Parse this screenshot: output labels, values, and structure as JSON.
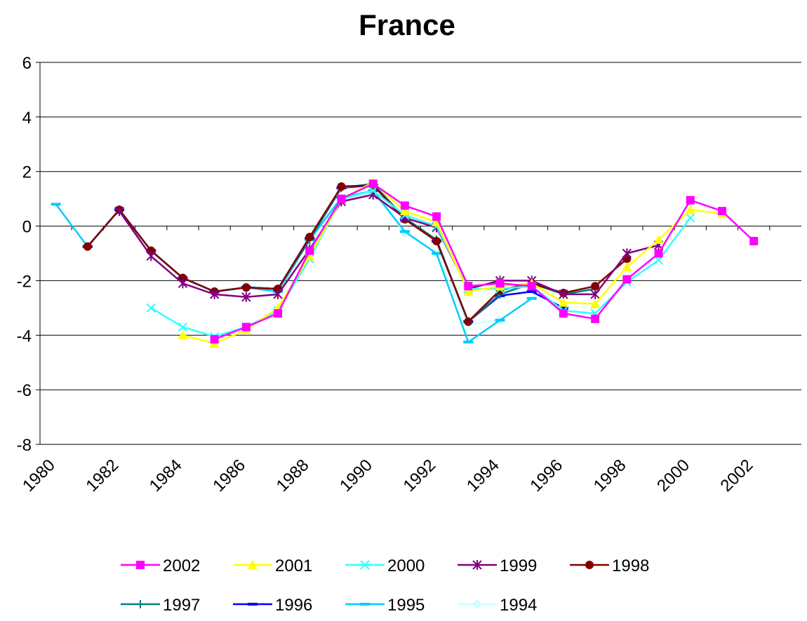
{
  "chart_data": {
    "type": "line",
    "title": "France",
    "categories": [
      "1980",
      null,
      "1982",
      null,
      "1984",
      null,
      "1986",
      null,
      "1988",
      null,
      "1990",
      null,
      "1992",
      null,
      "1994",
      null,
      "1996",
      null,
      "1998",
      null,
      "2000",
      null,
      "2002",
      null
    ],
    "ylim": [
      -8,
      6
    ],
    "yticks": [
      -8,
      -6,
      -4,
      -2,
      0,
      2,
      4,
      6
    ],
    "grid": true,
    "series": [
      {
        "name": "2002",
        "color": "#ff00ff",
        "marker": "square",
        "values": [
          null,
          null,
          null,
          null,
          null,
          -4.15,
          -3.7,
          -3.2,
          -0.9,
          1.0,
          1.55,
          0.75,
          0.35,
          -2.2,
          -2.1,
          -2.2,
          -3.2,
          -3.4,
          -1.95,
          -1.0,
          0.95,
          0.55,
          -0.55,
          null
        ]
      },
      {
        "name": "2001",
        "color": "#ffff00",
        "marker": "triangle",
        "values": [
          null,
          null,
          null,
          null,
          -4.0,
          -4.3,
          -3.8,
          -3.0,
          -1.1,
          1.0,
          1.6,
          0.55,
          0.15,
          -2.4,
          -2.2,
          -2.1,
          -2.8,
          -2.85,
          -1.5,
          -0.5,
          0.6,
          0.45,
          null,
          null
        ]
      },
      {
        "name": "2000",
        "color": "#33ffff",
        "marker": "x",
        "values": [
          null,
          null,
          null,
          -3.0,
          -3.7,
          -4.05,
          -3.7,
          -3.1,
          -1.2,
          1.0,
          1.3,
          0.4,
          0.0,
          -2.3,
          -2.3,
          -2.2,
          -3.1,
          -3.2,
          -2.05,
          -1.25,
          0.3,
          null,
          null,
          null
        ]
      },
      {
        "name": "1999",
        "color": "#800080",
        "marker": "star",
        "values": [
          null,
          null,
          0.55,
          -1.1,
          -2.1,
          -2.5,
          -2.6,
          -2.5,
          -0.85,
          0.9,
          1.15,
          0.3,
          -0.05,
          -2.3,
          -2.0,
          -2.0,
          -2.5,
          -2.5,
          -1.0,
          -0.7,
          null,
          null,
          null,
          null
        ]
      },
      {
        "name": "1998",
        "color": "#800000",
        "marker": "circle",
        "values": [
          null,
          -0.75,
          0.6,
          -0.9,
          -1.9,
          -2.4,
          -2.25,
          -2.3,
          -0.4,
          1.45,
          1.5,
          0.25,
          -0.55,
          -3.5,
          -2.35,
          -2.1,
          -2.45,
          -2.2,
          -1.2,
          null,
          null,
          null,
          null,
          null
        ]
      },
      {
        "name": "1997",
        "color": "#008080",
        "marker": "plus",
        "values": [
          null,
          -0.75,
          0.6,
          -0.9,
          -1.9,
          -2.4,
          -2.25,
          -2.3,
          -0.5,
          1.4,
          1.55,
          0.3,
          -0.5,
          -3.5,
          -2.5,
          -2.1,
          -2.5,
          -2.3,
          null,
          null,
          null,
          null,
          null,
          null
        ]
      },
      {
        "name": "1996",
        "color": "#0000ff",
        "marker": "dash",
        "values": [
          null,
          -0.75,
          0.6,
          -0.9,
          -1.9,
          -2.4,
          -2.25,
          -2.3,
          -0.45,
          1.4,
          1.5,
          0.25,
          -0.55,
          -3.5,
          -2.55,
          -2.4,
          -3.0,
          null,
          null,
          null,
          null,
          null,
          null,
          null
        ]
      },
      {
        "name": "1995",
        "color": "#00ccff",
        "marker": "dash",
        "values": [
          0.8,
          -0.75,
          0.6,
          -0.9,
          -1.9,
          -2.4,
          -2.25,
          -2.4,
          -0.5,
          1.05,
          1.3,
          -0.2,
          -1.0,
          -4.25,
          -3.45,
          -2.65,
          null,
          null,
          null,
          null,
          null,
          null,
          null,
          null
        ]
      },
      {
        "name": "1994",
        "color": "#ccffff",
        "marker": "diamond",
        "values": [
          null,
          -0.75,
          0.6,
          -0.9,
          -1.9,
          -2.4,
          -2.2,
          -2.3,
          -0.55,
          1.0,
          1.2,
          -0.25,
          -1.0,
          -3.6,
          -3.45,
          null,
          null,
          null,
          null,
          null,
          null,
          null,
          null,
          null
        ]
      }
    ]
  }
}
